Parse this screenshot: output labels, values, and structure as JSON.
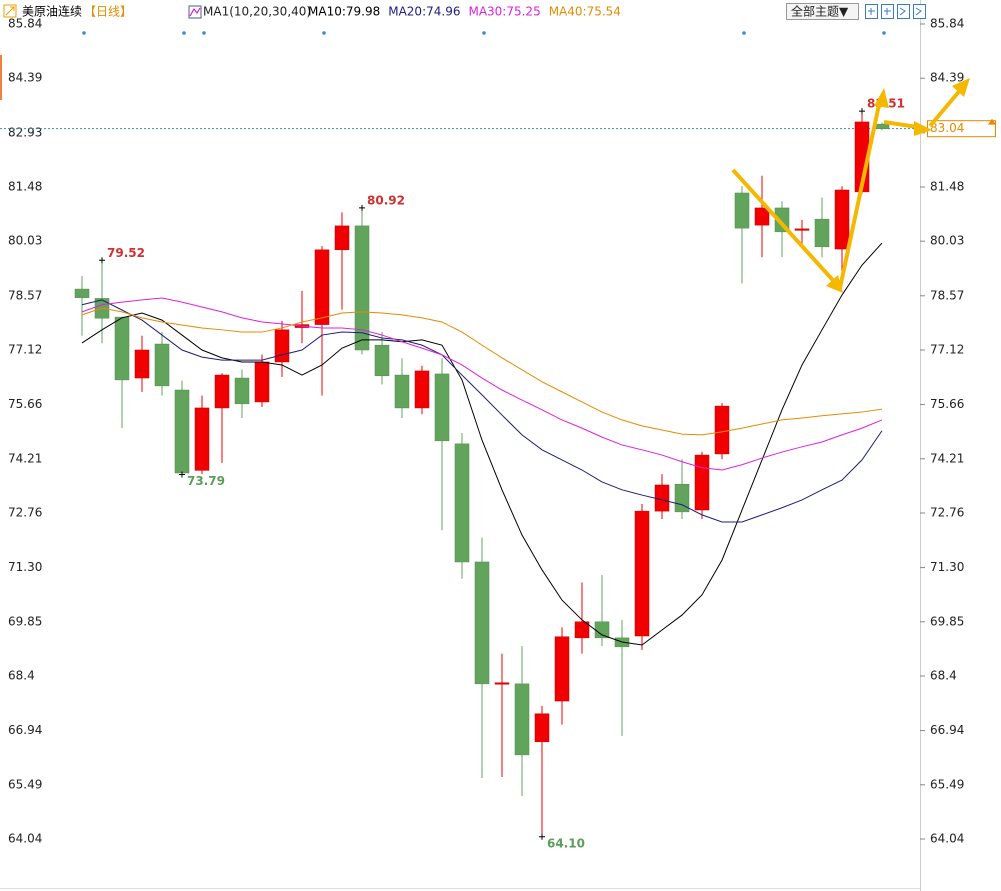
{
  "chart_data": {
    "type": "candlestick",
    "title": "美原油连续",
    "period": "【日线】",
    "indicator": "MA1(10,20,30,40)",
    "theme_button": "全部主题▼",
    "ylim": [
      64.04,
      85.84
    ],
    "yticks": [
      85.84,
      84.39,
      82.93,
      81.48,
      80.03,
      78.57,
      77.12,
      75.66,
      74.21,
      72.76,
      {
        "value": 71.3,
        "label": "71.30"
      },
      69.85,
      68.4,
      66.94,
      65.49,
      64.04
    ],
    "up_color": "#f00000",
    "down_color": "#62a45c",
    "open": [
      78.75,
      78.5,
      78.0,
      76.37,
      77.28,
      76.05,
      73.9,
      75.57,
      76.37,
      75.73,
      76.8,
      77.72,
      77.8,
      79.8,
      80.44,
      77.25,
      76.45,
      75.57,
      76.48,
      74.61,
      71.45,
      68.2,
      68.19,
      66.64,
      67.73,
      69.42,
      69.85,
      69.42,
      69.47,
      72.81,
      73.53,
      72.84,
      74.34,
      81.32,
      80.46,
      80.92,
      80.32,
      80.62,
      79.82,
      81.35,
      83.16
    ],
    "close": [
      78.52,
      77.97,
      76.32,
      77.12,
      76.16,
      73.83,
      75.57,
      76.45,
      75.68,
      76.8,
      77.66,
      77.8,
      79.8,
      80.44,
      77.12,
      76.43,
      75.57,
      76.56,
      74.69,
      71.45,
      68.19,
      68.22,
      66.29,
      67.39,
      69.45,
      69.85,
      69.42,
      69.18,
      72.81,
      73.51,
      72.79,
      74.31,
      75.62,
      80.38,
      80.92,
      80.28,
      80.36,
      79.88,
      81.4,
      83.22,
      83.04
    ],
    "high": [
      79.1,
      79.52,
      77.98,
      77.5,
      77.6,
      76.3,
      75.9,
      76.5,
      76.6,
      77.0,
      77.9,
      78.7,
      79.9,
      80.8,
      80.92,
      77.6,
      76.9,
      76.7,
      76.9,
      74.9,
      72.1,
      69.0,
      69.2,
      67.6,
      69.7,
      70.9,
      71.1,
      69.9,
      73.0,
      73.8,
      74.2,
      74.4,
      75.7,
      81.5,
      81.78,
      81.1,
      80.6,
      81.2,
      81.5,
      83.51,
      83.2
    ],
    "low": [
      77.5,
      77.3,
      75.03,
      76.0,
      75.9,
      73.79,
      73.8,
      74.1,
      75.3,
      75.6,
      76.4,
      77.3,
      75.9,
      78.2,
      77.0,
      76.2,
      75.3,
      75.4,
      72.3,
      71.0,
      65.67,
      65.7,
      65.19,
      64.1,
      67.1,
      69.0,
      69.2,
      66.8,
      69.1,
      72.6,
      72.6,
      72.6,
      74.2,
      78.9,
      79.6,
      79.6,
      79.9,
      79.6,
      79.2,
      81.3,
      83.0
    ],
    "series": [
      {
        "name": "MA10:79.98",
        "color": "#000000",
        "values": [
          77.31,
          77.66,
          77.98,
          78.11,
          77.92,
          77.52,
          77.12,
          76.91,
          76.8,
          76.8,
          76.72,
          76.45,
          76.72,
          77.17,
          77.39,
          77.39,
          77.34,
          77.39,
          77.25,
          76.32,
          74.71,
          73.38,
          72.17,
          71.24,
          70.43,
          69.9,
          69.5,
          69.31,
          69.23,
          69.63,
          70.03,
          70.57,
          71.5,
          72.84,
          74.18,
          75.52,
          76.72,
          77.66,
          78.59,
          79.39,
          79.98
        ]
      },
      {
        "name": "MA20:74.96",
        "color": "#1c1c80",
        "values": [
          78.33,
          78.46,
          78.19,
          77.92,
          77.52,
          77.12,
          76.93,
          76.85,
          76.85,
          76.85,
          76.99,
          77.12,
          77.52,
          77.6,
          77.58,
          77.44,
          77.39,
          77.25,
          76.99,
          76.45,
          75.92,
          75.38,
          74.85,
          74.45,
          74.18,
          73.91,
          73.59,
          73.38,
          73.24,
          73.11,
          72.98,
          72.71,
          72.52,
          72.52,
          72.71,
          72.9,
          73.11,
          73.38,
          73.64,
          74.18,
          74.96
        ]
      },
      {
        "name": "MA30:75.25",
        "color": "#e020e0",
        "values": [
          78.14,
          78.33,
          78.4,
          78.46,
          78.51,
          78.4,
          78.27,
          78.14,
          77.98,
          77.87,
          77.82,
          77.76,
          77.71,
          77.71,
          77.66,
          77.52,
          77.34,
          77.17,
          76.99,
          76.72,
          76.37,
          76.05,
          75.78,
          75.52,
          75.25,
          75.03,
          74.79,
          74.58,
          74.45,
          74.31,
          74.13,
          73.97,
          73.91,
          74.05,
          74.23,
          74.39,
          74.53,
          74.66,
          74.85,
          75.03,
          75.25
        ]
      },
      {
        "name": "MA40:75.54",
        "color": "#e88a00",
        "values": [
          78.06,
          78.24,
          78.14,
          77.98,
          77.87,
          77.79,
          77.71,
          77.66,
          77.6,
          77.6,
          77.71,
          77.87,
          77.98,
          78.11,
          78.14,
          78.11,
          78.06,
          77.98,
          77.87,
          77.6,
          77.25,
          76.91,
          76.59,
          76.27,
          76.0,
          75.73,
          75.46,
          75.25,
          75.09,
          74.98,
          74.87,
          74.85,
          74.93,
          75.03,
          75.14,
          75.25,
          75.3,
          75.36,
          75.41,
          75.46,
          75.54
        ]
      }
    ],
    "extremes": [
      {
        "value": 79.52,
        "label": "79.52"
      },
      {
        "value": 73.79,
        "label": "73.79"
      },
      {
        "value": 80.92,
        "label": "80.92"
      },
      {
        "value": 64.1,
        "label": "64.10"
      },
      {
        "value": 83.51,
        "label": "83.51"
      }
    ],
    "last_price": 83.04,
    "last_color": "#e88a00"
  }
}
